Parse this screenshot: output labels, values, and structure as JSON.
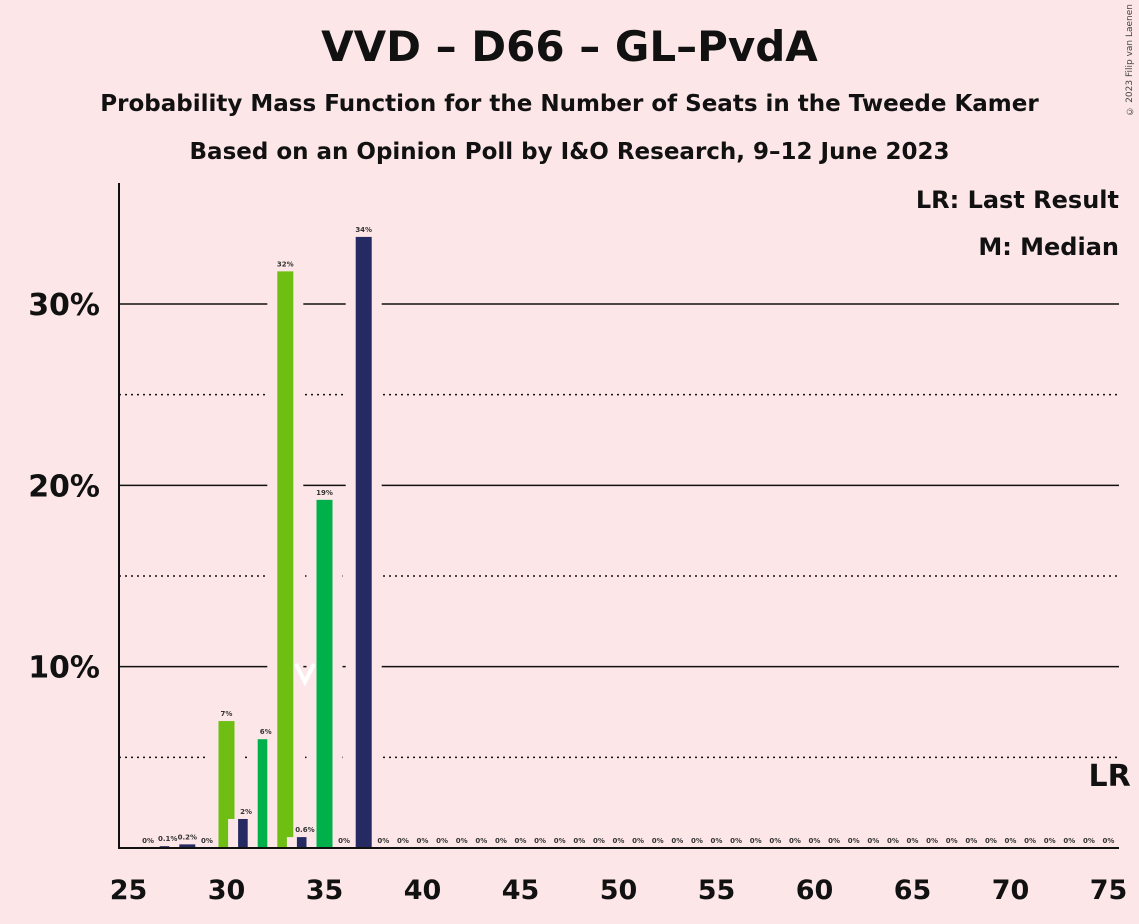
{
  "title": "VVD – D66 – GL–PvdA",
  "subtitle_1": "Probability Mass Function for the Number of Seats in the Tweede Kamer",
  "subtitle_2": "Based on an Opinion Poll by I&O Research, 9–12 June 2023",
  "copyright": "© 2023 Filip van Laenen",
  "legend": {
    "last_result": "LR: Last Result",
    "median": "M: Median"
  },
  "colors": {
    "background": "#fce6e8",
    "navy": "#252a62",
    "lime": "#6ebe14",
    "green": "#00b04a"
  },
  "chart_data": {
    "type": "bar",
    "title": "VVD – D66 – GL–PvdA",
    "x_min": 25,
    "x_max": 75,
    "x_ticks": [
      25,
      30,
      35,
      40,
      45,
      50,
      55,
      60,
      65,
      70,
      75
    ],
    "ylim": [
      0,
      36.8
    ],
    "y_ticks": [
      {
        "value": 10,
        "label": "10%"
      },
      {
        "value": 20,
        "label": "20%"
      },
      {
        "value": 30,
        "label": "30%"
      }
    ],
    "minor_gridlines": [
      5,
      15,
      25
    ],
    "median_seat": 34,
    "last_result_seat": 75,
    "last_result_label": "LR",
    "bars": [
      {
        "seat": 26,
        "value": 0,
        "label": "0%",
        "color": "navy"
      },
      {
        "seat": 27,
        "value": 0.1,
        "label": "0.1%",
        "color": "navy"
      },
      {
        "seat": 28,
        "value": 0.2,
        "label": "0.2%",
        "color": "navy"
      },
      {
        "seat": 29,
        "value": 0,
        "label": "0%",
        "color": "navy"
      },
      {
        "seat": 30,
        "value": 7,
        "label": "7%",
        "color": "lime"
      },
      {
        "seat": 31,
        "value": 1.6,
        "label": "2%",
        "color": "navy"
      },
      {
        "seat": 32,
        "value": 6,
        "label": "6%",
        "color": "green"
      },
      {
        "seat": 33,
        "value": 31.8,
        "label": "32%",
        "color": "lime"
      },
      {
        "seat": 34,
        "value": 0.6,
        "label": "0.6%",
        "color": "navy"
      },
      {
        "seat": 35,
        "value": 19.2,
        "label": "19%",
        "color": "green"
      },
      {
        "seat": 36,
        "value": 0,
        "label": "0%",
        "color": "navy"
      },
      {
        "seat": 37,
        "value": 33.7,
        "label": "34%",
        "color": "navy"
      },
      {
        "seat": 38,
        "value": 0,
        "label": "0%",
        "color": "navy"
      },
      {
        "seat": 39,
        "value": 0,
        "label": "0%",
        "color": "navy"
      },
      {
        "seat": 40,
        "value": 0,
        "label": "0%",
        "color": "navy"
      },
      {
        "seat": 41,
        "value": 0,
        "label": "0%",
        "color": "navy"
      },
      {
        "seat": 42,
        "value": 0,
        "label": "0%",
        "color": "navy"
      },
      {
        "seat": 43,
        "value": 0,
        "label": "0%",
        "color": "navy"
      },
      {
        "seat": 44,
        "value": 0,
        "label": "0%",
        "color": "navy"
      },
      {
        "seat": 45,
        "value": 0,
        "label": "0%",
        "color": "navy"
      },
      {
        "seat": 46,
        "value": 0,
        "label": "0%",
        "color": "navy"
      },
      {
        "seat": 47,
        "value": 0,
        "label": "0%",
        "color": "navy"
      },
      {
        "seat": 48,
        "value": 0,
        "label": "0%",
        "color": "navy"
      },
      {
        "seat": 49,
        "value": 0,
        "label": "0%",
        "color": "navy"
      },
      {
        "seat": 50,
        "value": 0,
        "label": "0%",
        "color": "navy"
      },
      {
        "seat": 51,
        "value": 0,
        "label": "0%",
        "color": "navy"
      },
      {
        "seat": 52,
        "value": 0,
        "label": "0%",
        "color": "navy"
      },
      {
        "seat": 53,
        "value": 0,
        "label": "0%",
        "color": "navy"
      },
      {
        "seat": 54,
        "value": 0,
        "label": "0%",
        "color": "navy"
      },
      {
        "seat": 55,
        "value": 0,
        "label": "0%",
        "color": "navy"
      },
      {
        "seat": 56,
        "value": 0,
        "label": "0%",
        "color": "navy"
      },
      {
        "seat": 57,
        "value": 0,
        "label": "0%",
        "color": "navy"
      },
      {
        "seat": 58,
        "value": 0,
        "label": "0%",
        "color": "navy"
      },
      {
        "seat": 59,
        "value": 0,
        "label": "0%",
        "color": "navy"
      },
      {
        "seat": 60,
        "value": 0,
        "label": "0%",
        "color": "navy"
      },
      {
        "seat": 61,
        "value": 0,
        "label": "0%",
        "color": "navy"
      },
      {
        "seat": 62,
        "value": 0,
        "label": "0%",
        "color": "navy"
      },
      {
        "seat": 63,
        "value": 0,
        "label": "0%",
        "color": "navy"
      },
      {
        "seat": 64,
        "value": 0,
        "label": "0%",
        "color": "navy"
      },
      {
        "seat": 65,
        "value": 0,
        "label": "0%",
        "color": "navy"
      },
      {
        "seat": 66,
        "value": 0,
        "label": "0%",
        "color": "navy"
      },
      {
        "seat": 67,
        "value": 0,
        "label": "0%",
        "color": "navy"
      },
      {
        "seat": 68,
        "value": 0,
        "label": "0%",
        "color": "navy"
      },
      {
        "seat": 69,
        "value": 0,
        "label": "0%",
        "color": "navy"
      },
      {
        "seat": 70,
        "value": 0,
        "label": "0%",
        "color": "navy"
      },
      {
        "seat": 71,
        "value": 0,
        "label": "0%",
        "color": "navy"
      },
      {
        "seat": 72,
        "value": 0,
        "label": "0%",
        "color": "navy"
      },
      {
        "seat": 73,
        "value": 0,
        "label": "0%",
        "color": "navy"
      },
      {
        "seat": 74,
        "value": 0,
        "label": "0%",
        "color": "navy"
      },
      {
        "seat": 75,
        "value": 0,
        "label": "0%",
        "color": "navy"
      }
    ]
  }
}
